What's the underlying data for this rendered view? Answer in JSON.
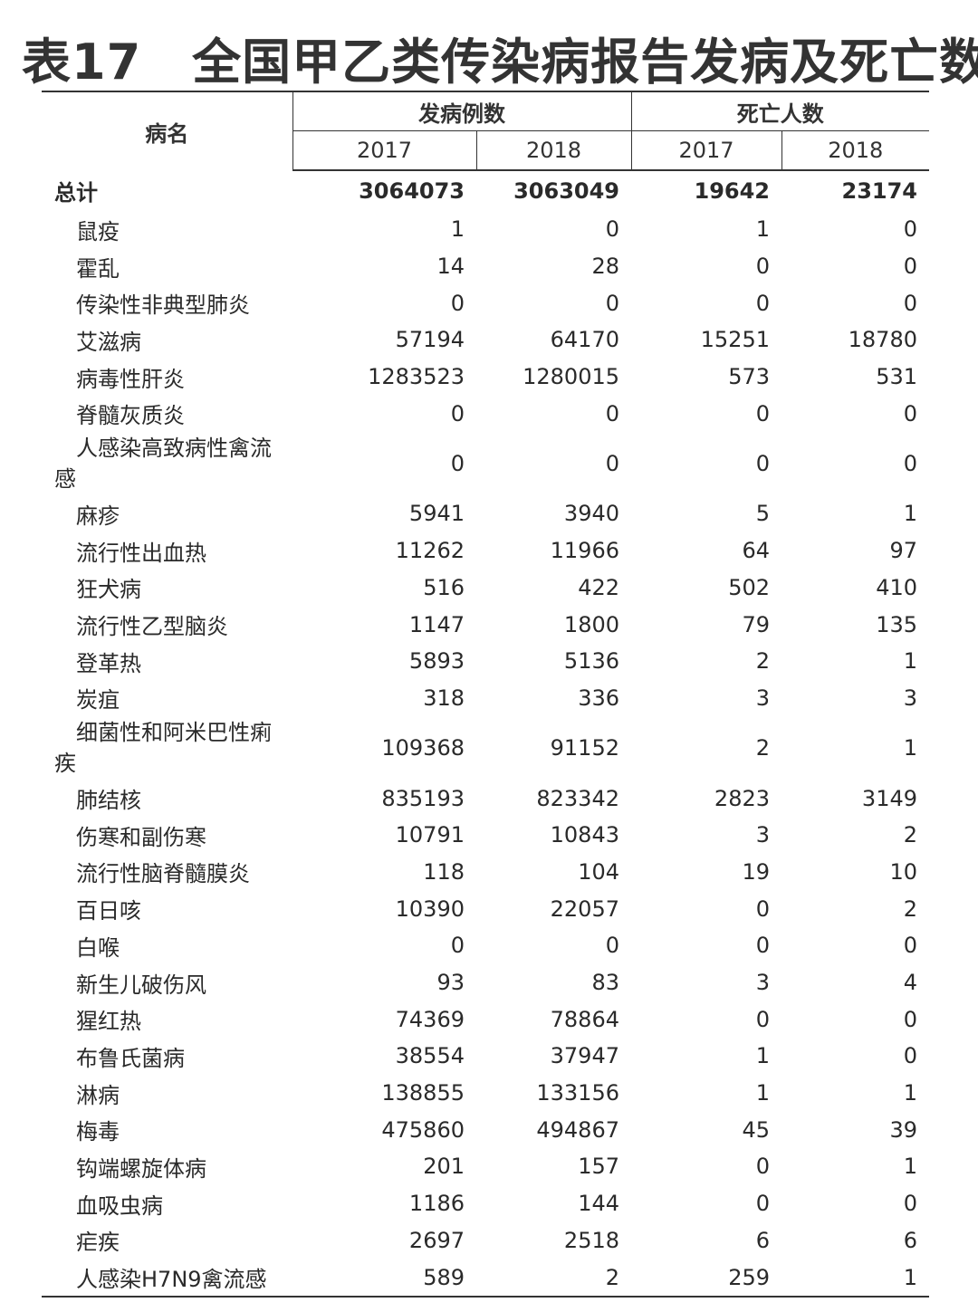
{
  "title": {
    "number": "表17",
    "text": "全国甲乙类传染病报告发病及死亡数"
  },
  "header": {
    "name_col": "病名",
    "group_cases": "发病例数",
    "group_deaths": "死亡人数",
    "years": [
      "2017",
      "2018",
      "2017",
      "2018"
    ]
  },
  "rows": [
    {
      "name": "总计",
      "values": [
        "3064073",
        "3063049",
        "19642",
        "23174"
      ],
      "total": true
    },
    {
      "name": "鼠疫",
      "values": [
        "1",
        "0",
        "1",
        "0"
      ]
    },
    {
      "name": "霍乱",
      "values": [
        "14",
        "28",
        "0",
        "0"
      ]
    },
    {
      "name": "传染性非典型肺炎",
      "values": [
        "0",
        "0",
        "0",
        "0"
      ]
    },
    {
      "name": "艾滋病",
      "values": [
        "57194",
        "64170",
        "15251",
        "18780"
      ]
    },
    {
      "name": "病毒性肝炎",
      "values": [
        "1283523",
        "1280015",
        "573",
        "531"
      ]
    },
    {
      "name": "脊髓灰质炎",
      "values": [
        "0",
        "0",
        "0",
        "0"
      ]
    },
    {
      "name": "人感染高致病性禽流感",
      "values": [
        "0",
        "0",
        "0",
        "0"
      ],
      "wrap": true
    },
    {
      "name": "麻疹",
      "values": [
        "5941",
        "3940",
        "5",
        "1"
      ]
    },
    {
      "name": "流行性出血热",
      "values": [
        "11262",
        "11966",
        "64",
        "97"
      ]
    },
    {
      "name": "狂犬病",
      "values": [
        "516",
        "422",
        "502",
        "410"
      ]
    },
    {
      "name": "流行性乙型脑炎",
      "values": [
        "1147",
        "1800",
        "79",
        "135"
      ]
    },
    {
      "name": "登革热",
      "values": [
        "5893",
        "5136",
        "2",
        "1"
      ]
    },
    {
      "name": "炭疽",
      "values": [
        "318",
        "336",
        "3",
        "3"
      ]
    },
    {
      "name": "细菌性和阿米巴性痢疾",
      "values": [
        "109368",
        "91152",
        "2",
        "1"
      ],
      "wrap": true
    },
    {
      "name": "肺结核",
      "values": [
        "835193",
        "823342",
        "2823",
        "3149"
      ]
    },
    {
      "name": "伤寒和副伤寒",
      "values": [
        "10791",
        "10843",
        "3",
        "2"
      ]
    },
    {
      "name": "流行性脑脊髓膜炎",
      "values": [
        "118",
        "104",
        "19",
        "10"
      ]
    },
    {
      "name": "百日咳",
      "values": [
        "10390",
        "22057",
        "0",
        "2"
      ]
    },
    {
      "name": "白喉",
      "values": [
        "0",
        "0",
        "0",
        "0"
      ]
    },
    {
      "name": "新生儿破伤风",
      "values": [
        "93",
        "83",
        "3",
        "4"
      ]
    },
    {
      "name": "猩红热",
      "values": [
        "74369",
        "78864",
        "0",
        "0"
      ]
    },
    {
      "name": "布鲁氏菌病",
      "values": [
        "38554",
        "37947",
        "1",
        "0"
      ]
    },
    {
      "name": "淋病",
      "values": [
        "138855",
        "133156",
        "1",
        "1"
      ]
    },
    {
      "name": "梅毒",
      "values": [
        "475860",
        "494867",
        "45",
        "39"
      ]
    },
    {
      "name": "钩端螺旋体病",
      "values": [
        "201",
        "157",
        "0",
        "1"
      ]
    },
    {
      "name": "血吸虫病",
      "values": [
        "1186",
        "144",
        "0",
        "0"
      ]
    },
    {
      "name": "疟疾",
      "values": [
        "2697",
        "2518",
        "6",
        "6"
      ]
    },
    {
      "name": "人感染H7N9禽流感",
      "values": [
        "589",
        "2",
        "259",
        "1"
      ]
    }
  ]
}
